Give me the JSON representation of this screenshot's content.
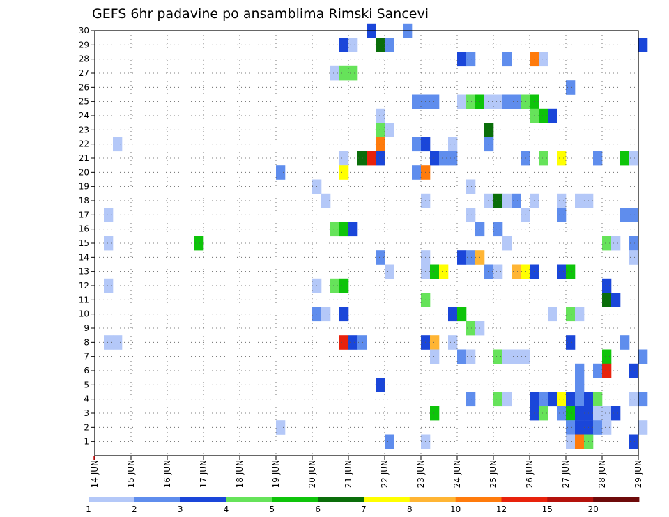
{
  "chart_data": {
    "type": "heatmap",
    "title": "GEFS 6hr padavine po ansamblima Rimski Sancevi",
    "xlabel": "",
    "ylabel": "",
    "x_tick_labels": [
      "14 JUN",
      "15 JUN",
      "16 JUN",
      "17 JUN",
      "18 JUN",
      "19 JUN",
      "20 JUN",
      "21 JUN",
      "22 JUN",
      "23 JUN",
      "24 JUN",
      "25 JUN",
      "26 JUN",
      "27 JUN",
      "28 JUN",
      "29 JUN"
    ],
    "x_range_days": [
      14,
      29
    ],
    "y_tick_labels": [
      "1",
      "2",
      "3",
      "4",
      "5",
      "6",
      "7",
      "8",
      "9",
      "10",
      "11",
      "12",
      "13",
      "14",
      "15",
      "16",
      "17",
      "18",
      "19",
      "20",
      "21",
      "22",
      "23",
      "24",
      "25",
      "26",
      "27",
      "28",
      "29",
      "30"
    ],
    "y_range_members": [
      0,
      30
    ],
    "grid": true,
    "colorbar": {
      "position": "bottom",
      "labels": [
        "1",
        "2",
        "3",
        "4",
        "5",
        "6",
        "7",
        "8",
        "10",
        "12",
        "15",
        "20"
      ],
      "colors": [
        "#b4c8f8",
        "#5f8ded",
        "#1a46d9",
        "#66e35a",
        "#0ec40a",
        "#0a6e0a",
        "#ffff00",
        "#ffb534",
        "#ff7b0c",
        "#e8220c",
        "#b4120c",
        "#6e0a0a"
      ]
    },
    "cells": [
      {
        "member": 30,
        "day": 21.5,
        "level": 3
      },
      {
        "member": 30,
        "day": 22.5,
        "level": 2
      },
      {
        "member": 29,
        "day": 20.75,
        "level": 3
      },
      {
        "member": 29,
        "day": 21,
        "level": 1
      },
      {
        "member": 29,
        "day": 21.75,
        "level": 6
      },
      {
        "member": 29,
        "day": 22,
        "level": 2
      },
      {
        "member": 29,
        "day": 29,
        "level": 3
      },
      {
        "member": 28,
        "day": 24,
        "level": 3
      },
      {
        "member": 28,
        "day": 24.25,
        "level": 2
      },
      {
        "member": 28,
        "day": 25.25,
        "level": 2
      },
      {
        "member": 28,
        "day": 26,
        "level": 9
      },
      {
        "member": 28,
        "day": 26.25,
        "level": 1
      },
      {
        "member": 27,
        "day": 20.5,
        "level": 1
      },
      {
        "member": 27,
        "day": 20.75,
        "level": 4
      },
      {
        "member": 27,
        "day": 21,
        "level": 4
      },
      {
        "member": 26,
        "day": 27,
        "level": 2
      },
      {
        "member": 25,
        "day": 22.75,
        "level": 2
      },
      {
        "member": 25,
        "day": 23,
        "level": 2
      },
      {
        "member": 25,
        "day": 23.25,
        "level": 2
      },
      {
        "member": 25,
        "day": 24,
        "level": 1
      },
      {
        "member": 25,
        "day": 24.25,
        "level": 4
      },
      {
        "member": 25,
        "day": 24.5,
        "level": 5
      },
      {
        "member": 25,
        "day": 24.75,
        "level": 1
      },
      {
        "member": 25,
        "day": 25,
        "level": 1
      },
      {
        "member": 25,
        "day": 25.25,
        "level": 2
      },
      {
        "member": 25,
        "day": 25.5,
        "level": 2
      },
      {
        "member": 25,
        "day": 25.75,
        "level": 4
      },
      {
        "member": 25,
        "day": 26,
        "level": 5
      },
      {
        "member": 24,
        "day": 21.75,
        "level": 1
      },
      {
        "member": 24,
        "day": 26,
        "level": 4
      },
      {
        "member": 24,
        "day": 26.25,
        "level": 5
      },
      {
        "member": 24,
        "day": 26.5,
        "level": 3
      },
      {
        "member": 23,
        "day": 21.75,
        "level": 4
      },
      {
        "member": 23,
        "day": 22,
        "level": 1
      },
      {
        "member": 23,
        "day": 24.75,
        "level": 6
      },
      {
        "member": 22,
        "day": 14.5,
        "level": 1
      },
      {
        "member": 22,
        "day": 21.75,
        "level": 9
      },
      {
        "member": 22,
        "day": 22.75,
        "level": 2
      },
      {
        "member": 22,
        "day": 23,
        "level": 3
      },
      {
        "member": 22,
        "day": 23.75,
        "level": 1
      },
      {
        "member": 22,
        "day": 24.75,
        "level": 2
      },
      {
        "member": 21,
        "day": 20.75,
        "level": 1
      },
      {
        "member": 21,
        "day": 21.25,
        "level": 6
      },
      {
        "member": 21,
        "day": 21.5,
        "level": 10
      },
      {
        "member": 21,
        "day": 21.75,
        "level": 3
      },
      {
        "member": 21,
        "day": 23.25,
        "level": 3
      },
      {
        "member": 21,
        "day": 23.5,
        "level": 2
      },
      {
        "member": 21,
        "day": 23.75,
        "level": 2
      },
      {
        "member": 21,
        "day": 25.75,
        "level": 2
      },
      {
        "member": 21,
        "day": 26.25,
        "level": 4
      },
      {
        "member": 21,
        "day": 26.75,
        "level": 7
      },
      {
        "member": 21,
        "day": 27.75,
        "level": 2
      },
      {
        "member": 21,
        "day": 28.5,
        "level": 5
      },
      {
        "member": 21,
        "day": 28.75,
        "level": 1
      },
      {
        "member": 20,
        "day": 19,
        "level": 2
      },
      {
        "member": 20,
        "day": 20.75,
        "level": 7
      },
      {
        "member": 20,
        "day": 22.75,
        "level": 2
      },
      {
        "member": 20,
        "day": 23,
        "level": 9
      },
      {
        "member": 19,
        "day": 20,
        "level": 1
      },
      {
        "member": 19,
        "day": 24.25,
        "level": 1
      },
      {
        "member": 18,
        "day": 20.25,
        "level": 1
      },
      {
        "member": 18,
        "day": 23,
        "level": 1
      },
      {
        "member": 18,
        "day": 24.75,
        "level": 1
      },
      {
        "member": 18,
        "day": 25,
        "level": 6
      },
      {
        "member": 18,
        "day": 25.25,
        "level": 1
      },
      {
        "member": 18,
        "day": 25.5,
        "level": 2
      },
      {
        "member": 18,
        "day": 26,
        "level": 1
      },
      {
        "member": 18,
        "day": 26.75,
        "level": 1
      },
      {
        "member": 18,
        "day": 27.25,
        "level": 1
      },
      {
        "member": 18,
        "day": 27.5,
        "level": 1
      },
      {
        "member": 17,
        "day": 14.25,
        "level": 1
      },
      {
        "member": 17,
        "day": 24.25,
        "level": 1
      },
      {
        "member": 17,
        "day": 25.75,
        "level": 1
      },
      {
        "member": 17,
        "day": 26.75,
        "level": 2
      },
      {
        "member": 17,
        "day": 28.5,
        "level": 2
      },
      {
        "member": 17,
        "day": 28.75,
        "level": 2
      },
      {
        "member": 16,
        "day": 20.5,
        "level": 4
      },
      {
        "member": 16,
        "day": 20.75,
        "level": 5
      },
      {
        "member": 16,
        "day": 21,
        "level": 3
      },
      {
        "member": 16,
        "day": 24.5,
        "level": 2
      },
      {
        "member": 16,
        "day": 25,
        "level": 2
      },
      {
        "member": 15,
        "day": 14.25,
        "level": 1
      },
      {
        "member": 15,
        "day": 16.75,
        "level": 5
      },
      {
        "member": 15,
        "day": 25.25,
        "level": 1
      },
      {
        "member": 15,
        "day": 28,
        "level": 4
      },
      {
        "member": 15,
        "day": 28.25,
        "level": 1
      },
      {
        "member": 15,
        "day": 28.75,
        "level": 2
      },
      {
        "member": 14,
        "day": 21.75,
        "level": 2
      },
      {
        "member": 14,
        "day": 23,
        "level": 1
      },
      {
        "member": 14,
        "day": 24,
        "level": 3
      },
      {
        "member": 14,
        "day": 24.25,
        "level": 2
      },
      {
        "member": 14,
        "day": 24.5,
        "level": 8
      },
      {
        "member": 14,
        "day": 28.75,
        "level": 1
      },
      {
        "member": 13,
        "day": 22,
        "level": 1
      },
      {
        "member": 13,
        "day": 23,
        "level": 1
      },
      {
        "member": 13,
        "day": 23.25,
        "level": 5
      },
      {
        "member": 13,
        "day": 23.5,
        "level": 7
      },
      {
        "member": 13,
        "day": 24.75,
        "level": 2
      },
      {
        "member": 13,
        "day": 25,
        "level": 1
      },
      {
        "member": 13,
        "day": 25.5,
        "level": 8
      },
      {
        "member": 13,
        "day": 25.75,
        "level": 7
      },
      {
        "member": 13,
        "day": 26,
        "level": 3
      },
      {
        "member": 13,
        "day": 26.75,
        "level": 3
      },
      {
        "member": 13,
        "day": 27,
        "level": 5
      },
      {
        "member": 12,
        "day": 14.25,
        "level": 1
      },
      {
        "member": 12,
        "day": 20,
        "level": 1
      },
      {
        "member": 12,
        "day": 20.5,
        "level": 4
      },
      {
        "member": 12,
        "day": 20.75,
        "level": 5
      },
      {
        "member": 12,
        "day": 28,
        "level": 3
      },
      {
        "member": 11,
        "day": 23,
        "level": 4
      },
      {
        "member": 11,
        "day": 28,
        "level": 6
      },
      {
        "member": 11,
        "day": 28.25,
        "level": 3
      },
      {
        "member": 10,
        "day": 20,
        "level": 2
      },
      {
        "member": 10,
        "day": 20.25,
        "level": 1
      },
      {
        "member": 10,
        "day": 20.75,
        "level": 3
      },
      {
        "member": 10,
        "day": 23.75,
        "level": 3
      },
      {
        "member": 10,
        "day": 24,
        "level": 5
      },
      {
        "member": 10,
        "day": 26.5,
        "level": 1
      },
      {
        "member": 10,
        "day": 27,
        "level": 4
      },
      {
        "member": 10,
        "day": 27.25,
        "level": 1
      },
      {
        "member": 9,
        "day": 24.25,
        "level": 4
      },
      {
        "member": 9,
        "day": 24.5,
        "level": 1
      },
      {
        "member": 8,
        "day": 14.25,
        "level": 1
      },
      {
        "member": 8,
        "day": 14.5,
        "level": 1
      },
      {
        "member": 8,
        "day": 20.75,
        "level": 10
      },
      {
        "member": 8,
        "day": 21,
        "level": 3
      },
      {
        "member": 8,
        "day": 21.25,
        "level": 2
      },
      {
        "member": 8,
        "day": 23,
        "level": 3
      },
      {
        "member": 8,
        "day": 23.25,
        "level": 8
      },
      {
        "member": 8,
        "day": 23.75,
        "level": 1
      },
      {
        "member": 8,
        "day": 27,
        "level": 3
      },
      {
        "member": 8,
        "day": 28.5,
        "level": 2
      },
      {
        "member": 7,
        "day": 23.25,
        "level": 1
      },
      {
        "member": 7,
        "day": 24,
        "level": 2
      },
      {
        "member": 7,
        "day": 24.25,
        "level": 1
      },
      {
        "member": 7,
        "day": 25,
        "level": 4
      },
      {
        "member": 7,
        "day": 25.25,
        "level": 1
      },
      {
        "member": 7,
        "day": 25.5,
        "level": 1
      },
      {
        "member": 7,
        "day": 25.75,
        "level": 1
      },
      {
        "member": 7,
        "day": 28,
        "level": 5
      },
      {
        "member": 7,
        "day": 29,
        "level": 2
      },
      {
        "member": 6,
        "day": 27.25,
        "level": 2
      },
      {
        "member": 6,
        "day": 27.75,
        "level": 2
      },
      {
        "member": 6,
        "day": 28,
        "level": 10
      },
      {
        "member": 6,
        "day": 28.75,
        "level": 3
      },
      {
        "member": 5,
        "day": 21.75,
        "level": 3
      },
      {
        "member": 5,
        "day": 27.25,
        "level": 2
      },
      {
        "member": 4,
        "day": 24.25,
        "level": 2
      },
      {
        "member": 4,
        "day": 25,
        "level": 4
      },
      {
        "member": 4,
        "day": 25.25,
        "level": 1
      },
      {
        "member": 4,
        "day": 26,
        "level": 3
      },
      {
        "member": 4,
        "day": 26.25,
        "level": 2
      },
      {
        "member": 4,
        "day": 26.5,
        "level": 3
      },
      {
        "member": 4,
        "day": 26.75,
        "level": 7
      },
      {
        "member": 4,
        "day": 27,
        "level": 3
      },
      {
        "member": 4,
        "day": 27.25,
        "level": 2
      },
      {
        "member": 4,
        "day": 27.5,
        "level": 3
      },
      {
        "member": 4,
        "day": 27.75,
        "level": 4
      },
      {
        "member": 4,
        "day": 28.75,
        "level": 1
      },
      {
        "member": 4,
        "day": 29,
        "level": 2
      },
      {
        "member": 3,
        "day": 23.25,
        "level": 5
      },
      {
        "member": 3,
        "day": 26,
        "level": 3
      },
      {
        "member": 3,
        "day": 26.25,
        "level": 4
      },
      {
        "member": 3,
        "day": 26.75,
        "level": 2
      },
      {
        "member": 3,
        "day": 27,
        "level": 5
      },
      {
        "member": 3,
        "day": 27.25,
        "level": 3
      },
      {
        "member": 3,
        "day": 27.5,
        "level": 3
      },
      {
        "member": 3,
        "day": 27.75,
        "level": 1
      },
      {
        "member": 3,
        "day": 28,
        "level": 1
      },
      {
        "member": 3,
        "day": 28.25,
        "level": 3
      },
      {
        "member": 2,
        "day": 19,
        "level": 1
      },
      {
        "member": 2,
        "day": 27,
        "level": 2
      },
      {
        "member": 2,
        "day": 27.25,
        "level": 3
      },
      {
        "member": 2,
        "day": 27.5,
        "level": 3
      },
      {
        "member": 2,
        "day": 27.75,
        "level": 2
      },
      {
        "member": 2,
        "day": 28,
        "level": 1
      },
      {
        "member": 2,
        "day": 29,
        "level": 1
      },
      {
        "member": 1,
        "day": 22,
        "level": 2
      },
      {
        "member": 1,
        "day": 23,
        "level": 1
      },
      {
        "member": 1,
        "day": 27,
        "level": 1
      },
      {
        "member": 1,
        "day": 27.25,
        "level": 9
      },
      {
        "member": 1,
        "day": 27.5,
        "level": 4
      },
      {
        "member": 1,
        "day": 28.75,
        "level": 3
      }
    ]
  }
}
